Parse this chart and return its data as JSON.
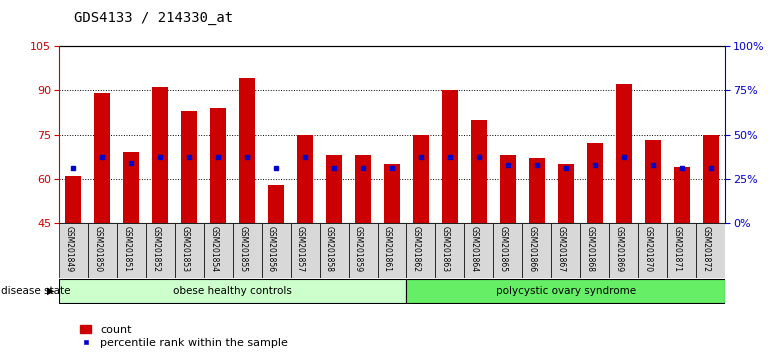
{
  "title": "GDS4133 / 214330_at",
  "samples": [
    "GSM201849",
    "GSM201850",
    "GSM201851",
    "GSM201852",
    "GSM201853",
    "GSM201854",
    "GSM201855",
    "GSM201856",
    "GSM201857",
    "GSM201858",
    "GSM201859",
    "GSM201861",
    "GSM201862",
    "GSM201863",
    "GSM201864",
    "GSM201865",
    "GSM201866",
    "GSM201867",
    "GSM201868",
    "GSM201869",
    "GSM201870",
    "GSM201871",
    "GSM201872"
  ],
  "count_values": [
    61,
    89,
    69,
    91,
    83,
    84,
    94,
    58,
    75,
    68,
    68,
    65,
    75,
    90,
    80,
    68,
    67,
    65,
    72,
    92,
    73,
    64,
    75
  ],
  "percentile_values_left": [
    63.5,
    67.5,
    65.5,
    67.5,
    67.5,
    67.5,
    67.5,
    63.5,
    67.5,
    63.5,
    63.5,
    63.5,
    67.5,
    67.5,
    67.5,
    64.5,
    64.5,
    63.5,
    64.5,
    67.5,
    64.5,
    63.5,
    63.5
  ],
  "groups": [
    {
      "label": "obese healthy controls",
      "start": 0,
      "end": 12,
      "color": "#ccffcc"
    },
    {
      "label": "polycystic ovary syndrome",
      "start": 12,
      "end": 23,
      "color": "#66ee66"
    }
  ],
  "ylim_left": [
    45,
    105
  ],
  "yticks_left": [
    45,
    60,
    75,
    90,
    105
  ],
  "ylim_right": [
    0,
    100
  ],
  "yticks_right": [
    0,
    25,
    50,
    75,
    100
  ],
  "bar_color": "#cc0000",
  "dot_color": "#0000cc",
  "bar_width": 0.55,
  "background_color": "#ffffff",
  "disease_state_label": "disease state",
  "legend_count": "count",
  "legend_percentile": "percentile rank within the sample",
  "title_color": "#000000",
  "left_axis_color": "#cc0000",
  "right_axis_color": "#0000cc"
}
